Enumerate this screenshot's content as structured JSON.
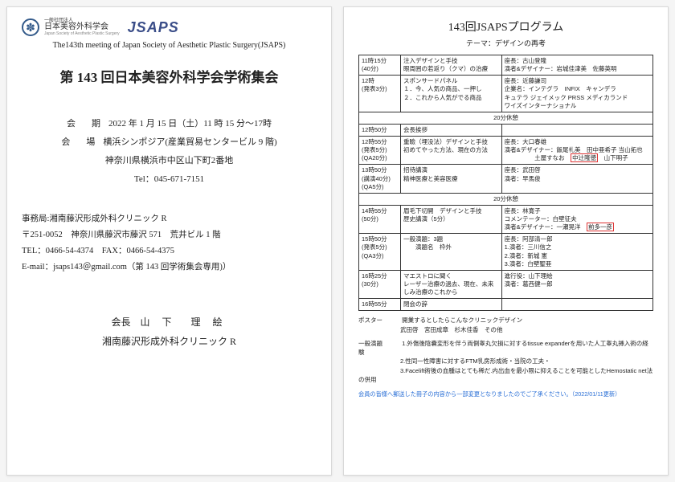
{
  "left": {
    "logo_jp_top": "一般社団法人",
    "logo_jp": "日本美容外科学会",
    "logo_jp_sub": "Japan Society of Aesthetic Plastic Surgery",
    "logo_text": "JSAPS",
    "subtitle": "The143th meeting of Japan Society of Aesthetic Plastic Surgery(JSAPS)",
    "title": "第 143 回日本美容外科学会学術集会",
    "date_lbl": "会期",
    "date": "2022 年 1 月 15 日（土）11 時 15 分〜17時",
    "venue_lbl": "会場",
    "venue": "横浜シンポジア(産業貿易センタービル 9 階)",
    "address": "神奈川県横浜市中区山下町2番地",
    "tel": "Tel：045-671-7151",
    "office_lbl": "事務局:湘南藤沢形成外科クリニック R",
    "office_addr": "〒251-0052　神奈川県藤沢市藤沢 571　荒井ビル 1 階",
    "office_tel": "TEL：0466-54-4374　FAX：0466-54-4375",
    "office_mail": "E-mail：jsaps143＠gmail.com（第 143 回学術集会専用)）",
    "chair_lbl": "会長",
    "chair_name": "山 下　理 絵",
    "chair_org": "湘南藤沢形成外科クリニック R"
  },
  "right": {
    "title": "143回JSAPSプログラム",
    "theme": "テーマ：デザインの再考",
    "rows": [
      {
        "time": "11時15分\n(40分)",
        "topic": "注入デザインと手技\n眼周囲の若返り（クマ）の治療",
        "chair": "座長：古山登隆\n演者&デザイナー：岩城佳津美　佐藤英明"
      },
      {
        "time": "12時\n(発表3分)",
        "topic": "スポンサードパネル\n１．今、人気の商品、一押し\n２．これから人気がでる商品",
        "chair": "座長：近藤謙司\n企業名：インテグラ　INFIX　キャンデラ\nキュテラ ジェイメック PRSS メディカランド\nワイズインターナショナル"
      },
      {
        "break": "20分休憩"
      },
      {
        "time": "12時50分",
        "topic": "会長挨拶",
        "chair": ""
      },
      {
        "time": "12時55分\n(発表5分)\n(QA20分)",
        "topic": "重瞼（埋没法）デザインと手技\n初めてやった方法、現在の方法",
        "chair": "座長：大口春雄\n演者&デザイナー：飯尾礼美　田中亜希子 当山拓也\n　　　　　土屋すなお　",
        "hl": "中辻隆徳",
        "tail": "　山下明子"
      },
      {
        "time": "13時50分\n(講演40分)\n(QA5分)",
        "topic": "招待講演\n精神医療と美容医療",
        "chair": "座長：武田啓\n演者：早馬俊"
      },
      {
        "break": "20分休憩"
      },
      {
        "time": "14時55分\n(50分)",
        "topic": "眉毛下切開　デザインと手技\n歴史講演（5分）",
        "chair": "座長：林寛子\nコメンテーター：白壁征夫\n演者&デザイナー：一瀬晃洋　",
        "hl": "前多一彦"
      },
      {
        "time": "15時50分\n(発表5分)\n(QA3分)",
        "topic": "一般演題：3題\n　　演題名　枠外",
        "chair": "座長：阿部清一郎\n1.演者：三川信之\n2.演者：新城 憲\n3.演者：白壁聖亜"
      },
      {
        "time": "16時25分\n(30分)",
        "topic": "マエストロに聞く\nレーザー治療の過去、現在、未来\nしみ治療のこれから",
        "chair": "進行役：山下理絵\n演者：葛西健一郎"
      },
      {
        "time": "16時55分",
        "topic": "閉会の辞",
        "chair": ""
      }
    ],
    "poster_lbl": "ポスター",
    "poster_line1": "開業するとしたらこんなクリニックデザイン",
    "poster_line2": "武田啓　宮田成章　杉木佳香　その他",
    "ippan_lbl": "一般演題",
    "ippan1": "1.外傷後陰嚢変形を伴う両側睾丸欠損に対するtissue expanderを用いた人工睾丸挿入術の経験",
    "ippan2": "2.性同一性障害に対するFTM乳房形成術・当院の工夫・",
    "ippan3": "3.Facelift術後の血腫はとても稀だ.内出血を最小限に抑えることを可能としたHemostatic net法の併用",
    "note": "会員の皆様へ郵送した冊子の内容から一部変更となりましたのでご了承ください。（2022/01/11更新）"
  }
}
